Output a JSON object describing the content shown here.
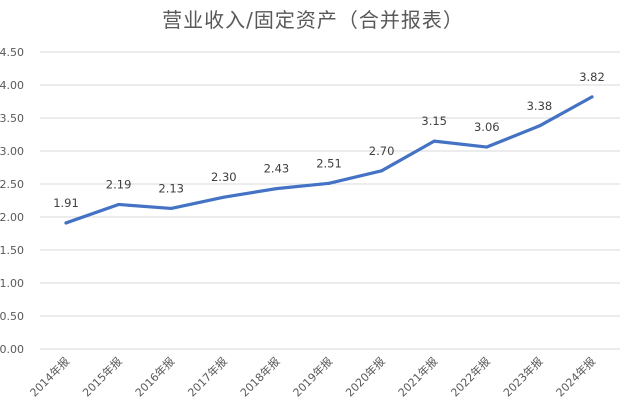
{
  "chart_data": {
    "type": "line",
    "title": "营业收入/固定资产（合并报表）",
    "xlabel": "",
    "ylabel": "",
    "categories": [
      "2014年报",
      "2015年报",
      "2016年报",
      "2017年报",
      "2018年报",
      "2019年报",
      "2020年报",
      "2021年报",
      "2022年报",
      "2023年报",
      "2024年报"
    ],
    "series": [
      {
        "values": [
          1.91,
          2.19,
          2.13,
          2.3,
          2.43,
          2.51,
          2.7,
          3.15,
          3.06,
          3.38,
          3.82
        ]
      }
    ],
    "data_labels": [
      "1.91",
      "2.19",
      "2.13",
      "2.30",
      "2.43",
      "2.51",
      "2.70",
      "3.15",
      "3.06",
      "3.38",
      "3.82"
    ],
    "y_ticks": [
      "0.00",
      "0.50",
      "1.00",
      "1.50",
      "2.00",
      "2.50",
      "3.00",
      "3.50",
      "4.00",
      "4.50"
    ],
    "ylim": [
      0,
      4.5
    ],
    "grid": true,
    "legend": "none",
    "line_color": "#4472c4"
  }
}
